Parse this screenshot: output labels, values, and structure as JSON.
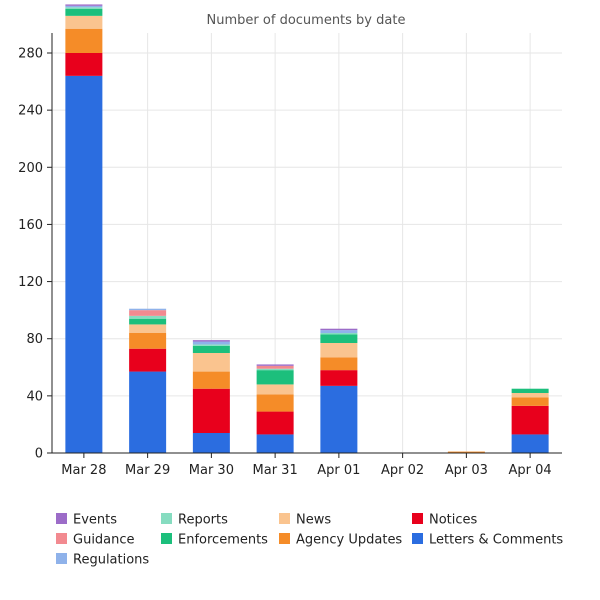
{
  "chart_data": {
    "type": "bar",
    "stacked": true,
    "title": "Number of documents by date",
    "xlabel": "",
    "ylabel": "",
    "ylim": [
      0,
      294
    ],
    "yticks": [
      0,
      40,
      80,
      120,
      160,
      200,
      240,
      280
    ],
    "grid": true,
    "legend_position": "bottom",
    "categories": [
      "Mar 28",
      "Mar 29",
      "Mar 30",
      "Mar 31",
      "Apr 01",
      "Apr 02",
      "Apr 03",
      "Apr 04"
    ],
    "series": [
      {
        "name": "Letters & Comments",
        "color": "#2b6de0",
        "values": [
          264,
          57,
          14,
          13,
          47,
          0,
          0,
          13
        ]
      },
      {
        "name": "Notices",
        "color": "#e8001c",
        "values": [
          16,
          16,
          31,
          16,
          11,
          0,
          0,
          20
        ]
      },
      {
        "name": "Agency Updates",
        "color": "#f58c28",
        "values": [
          17,
          11,
          12,
          12,
          9,
          0,
          1,
          6
        ]
      },
      {
        "name": "News",
        "color": "#fac48f",
        "values": [
          9,
          6,
          13,
          7,
          10,
          0,
          0,
          3
        ]
      },
      {
        "name": "Enforcements",
        "color": "#1cbf7c",
        "values": [
          5,
          4,
          5,
          10,
          6,
          0,
          0,
          3
        ]
      },
      {
        "name": "Reports",
        "color": "#86dcc0",
        "values": [
          1,
          2,
          1,
          1,
          1,
          0,
          0,
          0
        ]
      },
      {
        "name": "Guidance",
        "color": "#f28a90",
        "values": [
          0,
          4,
          0,
          2,
          0,
          0,
          0,
          0
        ]
      },
      {
        "name": "Regulations",
        "color": "#8fb2ea",
        "values": [
          1,
          1,
          2,
          0,
          2,
          0,
          0,
          0
        ]
      },
      {
        "name": "Events",
        "color": "#9c6cc8",
        "values": [
          1,
          0,
          1,
          1,
          1,
          0,
          0,
          0
        ]
      }
    ],
    "legend_order": [
      "Events",
      "Reports",
      "News",
      "Notices",
      "Guidance",
      "Enforcements",
      "Agency Updates",
      "Letters & Comments",
      "Regulations"
    ]
  }
}
